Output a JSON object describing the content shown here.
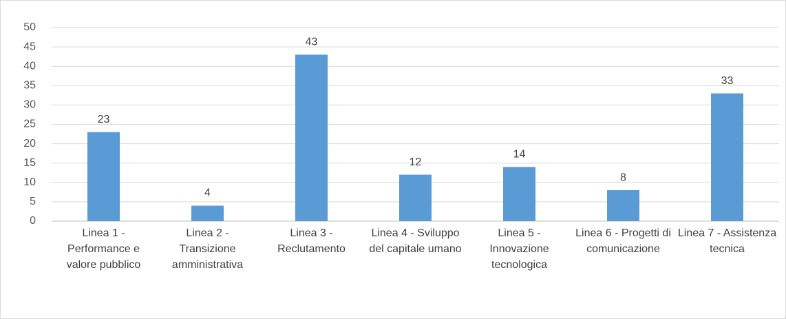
{
  "chart_data": {
    "type": "bar",
    "categories": [
      "Linea 1 - Performance e valore pubblico",
      "Linea 2 - Transizione amministrativa",
      "Linea 3 - Reclutamento",
      "Linea 4 - Sviluppo del capitale umano",
      "Linea 5 - Innovazione tecnologica",
      "Linea 6 - Progetti di comunicazione",
      "Linea 7 - Assistenza tecnica"
    ],
    "values": [
      23,
      4,
      43,
      12,
      14,
      8,
      33
    ],
    "color": "#5b9bd5",
    "ylim": [
      0,
      50
    ],
    "yticks": [
      0,
      5,
      10,
      15,
      20,
      25,
      30,
      35,
      40,
      45,
      50
    ],
    "grid": true
  }
}
